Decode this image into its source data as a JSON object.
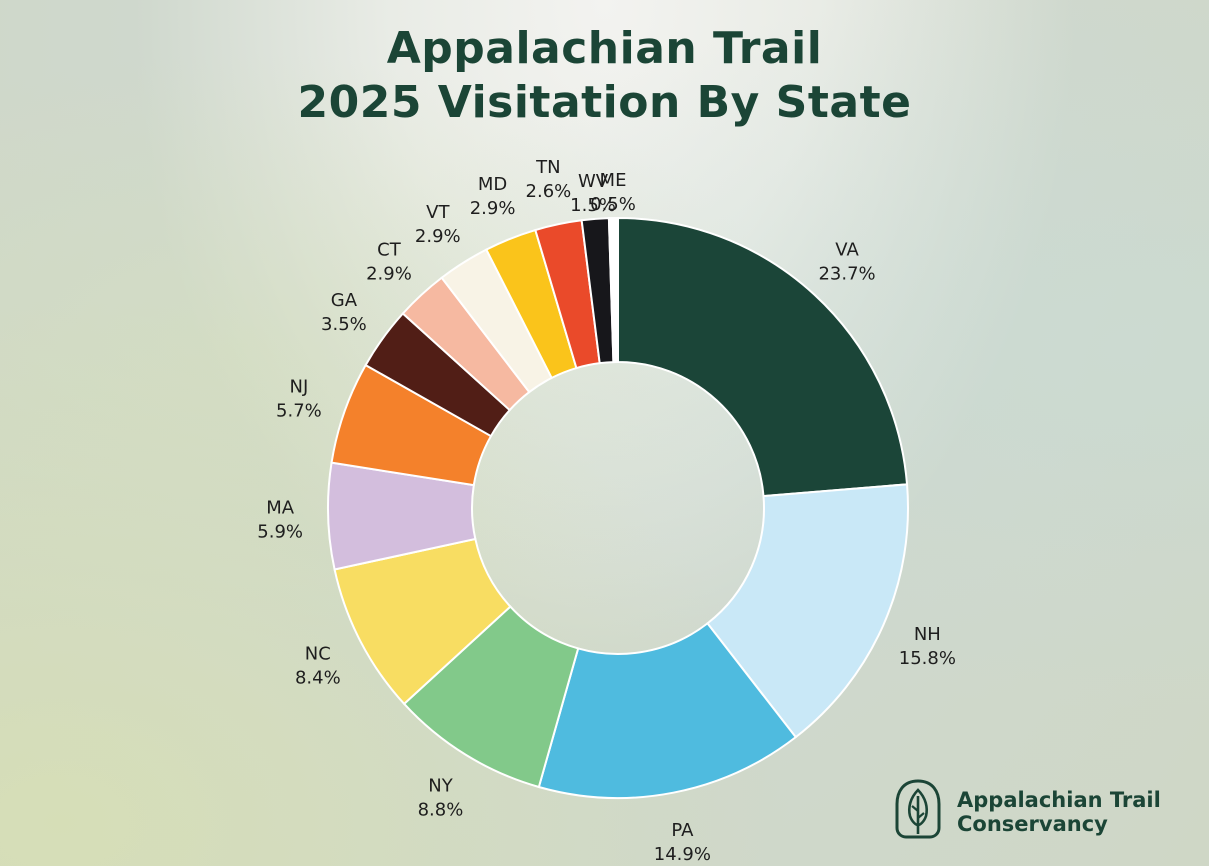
{
  "title": {
    "line1": "Appalachian Trail",
    "line2": "2025 Visitation By State"
  },
  "brand": {
    "line1": "Appalachian Trail",
    "line2": "Conservancy",
    "logo_icon": "leaf-emblem-icon"
  },
  "chart_data": {
    "type": "pie",
    "donut": true,
    "title": "Appalachian Trail 2025 Visitation By State",
    "legend": "none",
    "slices": [
      {
        "label": "VA",
        "value": 23.7,
        "display": "23.7%",
        "color": "#1b4538"
      },
      {
        "label": "NH",
        "value": 15.8,
        "display": "15.8%",
        "color": "#c9e8f7"
      },
      {
        "label": "PA",
        "value": 14.9,
        "display": "14.9%",
        "color": "#4fbbdf"
      },
      {
        "label": "NY",
        "value": 8.8,
        "display": "8.8%",
        "color": "#82c98a"
      },
      {
        "label": "NC",
        "value": 8.4,
        "display": "8.4%",
        "color": "#f8dd62"
      },
      {
        "label": "MA",
        "value": 5.9,
        "display": "5.9%",
        "color": "#d3bedd"
      },
      {
        "label": "NJ",
        "value": 5.7,
        "display": "5.7%",
        "color": "#f4812b"
      },
      {
        "label": "GA",
        "value": 3.5,
        "display": "3.5%",
        "color": "#511e16"
      },
      {
        "label": "CT",
        "value": 2.9,
        "display": "2.9%",
        "color": "#f6b9a1"
      },
      {
        "label": "VT",
        "value": 2.9,
        "display": "2.9%",
        "color": "#f8f3e6"
      },
      {
        "label": "MD",
        "value": 2.9,
        "display": "2.9%",
        "color": "#fac41b"
      },
      {
        "label": "TN",
        "value": 2.6,
        "display": "2.6%",
        "color": "#ea4a2a"
      },
      {
        "label": "WV",
        "value": 1.5,
        "display": "1.5%",
        "color": "#17171b"
      },
      {
        "label": "ME",
        "value": 0.5,
        "display": "0.5%",
        "color": "#ffffff"
      }
    ]
  }
}
